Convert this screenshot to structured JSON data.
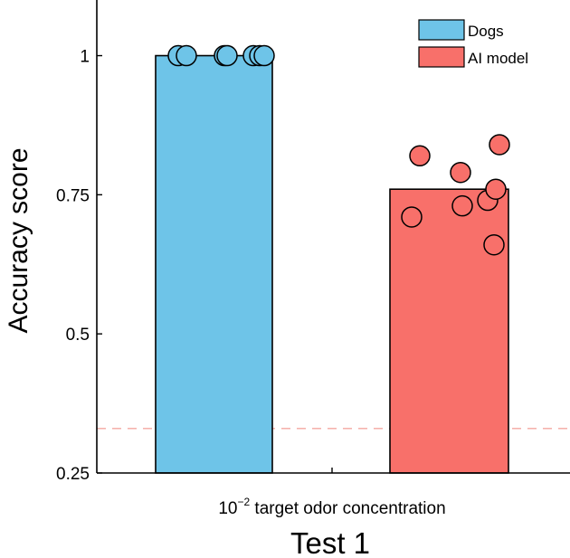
{
  "chart_data": {
    "type": "bar",
    "title": "",
    "xlabel": "Test 1",
    "ylabel": "Accuracy score",
    "category_label": {
      "base": "10",
      "exponent": "−2",
      "rest": " target odor concentration"
    },
    "ylim": [
      0.25,
      1.1
    ],
    "yticks": [
      0.25,
      0.5,
      0.75,
      1
    ],
    "ytick_labels": [
      "0.25",
      "0.5",
      "0.75",
      "1"
    ],
    "grid": false,
    "legend_position": "top-right",
    "chance_level": 0.33,
    "series": [
      {
        "name": "Dogs",
        "value": 1.0,
        "color": "#6EC4E8",
        "points": [
          1.0,
          1.0,
          1.0,
          1.0,
          1.0,
          1.0,
          1.0
        ]
      },
      {
        "name": "AI model",
        "value": 0.76,
        "color": "#F8706A",
        "points": [
          0.82,
          0.71,
          0.79,
          0.73,
          0.74,
          0.84,
          0.76,
          0.66
        ]
      }
    ],
    "chance_line_color": "#F4A7A0"
  }
}
